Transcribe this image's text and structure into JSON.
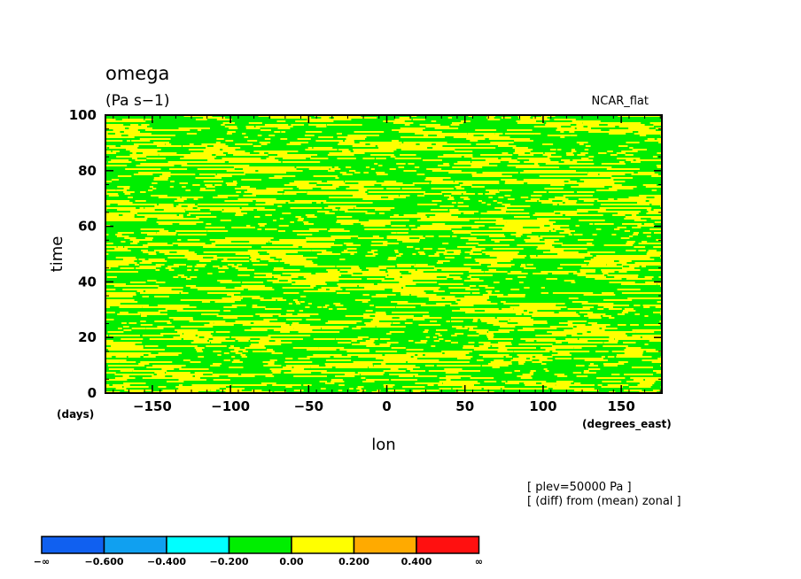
{
  "chart_data": {
    "type": "heatmap",
    "title": "omega",
    "units": "(Pa s−1)",
    "case_label": "NCAR_flat",
    "xlabel": "lon",
    "x_units": "(degrees_east)",
    "ylabel": "time",
    "y_units": "(days)",
    "xlim": [
      -180,
      176
    ],
    "ylim": [
      0,
      100
    ],
    "xticks": [
      -150,
      -100,
      -50,
      0,
      50,
      100,
      150
    ],
    "yticks": [
      0,
      20,
      40,
      60,
      80,
      100
    ],
    "xtick_labels": [
      "−150",
      "−100",
      "−50",
      "0",
      "50",
      "100",
      "150"
    ],
    "ytick_labels": [
      "0",
      "20",
      "40",
      "60",
      "80",
      "100"
    ],
    "annotations": [
      "[ plev=50000 Pa ]",
      "[ (diff) from (mean) zonal ]"
    ],
    "dominant_bins": [
      "-0.200 to 0.00",
      "0.00 to 0.200"
    ],
    "colorbar": {
      "colors": [
        "#1060f0",
        "#10a0f0",
        "#00ffff",
        "#00ee00",
        "#ffff00",
        "#ffaa00",
        "#ff1010"
      ],
      "labels": [
        "−∞",
        "−0.600",
        "−0.400",
        "−0.200",
        "0.00",
        "0.200",
        "0.400",
        "∞"
      ],
      "boundaries": [
        "-inf",
        -0.6,
        -0.4,
        -0.2,
        0.0,
        0.2,
        0.4,
        "inf"
      ]
    }
  }
}
